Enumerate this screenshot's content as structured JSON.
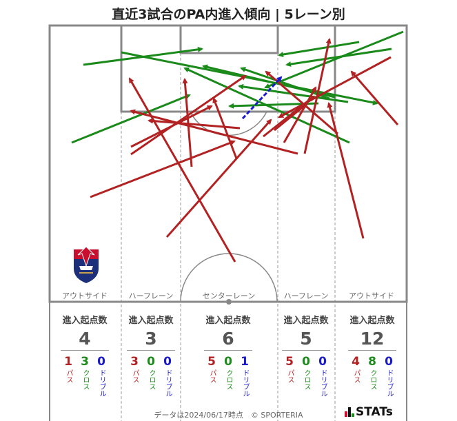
{
  "title": "直近3試合のPA内進入傾向 | 5レーン別",
  "lanes": [
    {
      "label": "アウトサイド",
      "stat_header": "進入起点数",
      "total": "4",
      "pass": "1",
      "cross": "3",
      "dribble": "0"
    },
    {
      "label": "ハーフレーン",
      "stat_header": "進入起点数",
      "total": "3",
      "pass": "3",
      "cross": "0",
      "dribble": "0"
    },
    {
      "label": "センターレーン",
      "stat_header": "進入起点数",
      "total": "6",
      "pass": "5",
      "cross": "0",
      "dribble": "1"
    },
    {
      "label": "ハーフレーン",
      "stat_header": "進入起点数",
      "total": "5",
      "pass": "5",
      "cross": "0",
      "dribble": "0"
    },
    {
      "label": "アウトサイド",
      "stat_header": "進入起点数",
      "total": "12",
      "pass": "4",
      "cross": "8",
      "dribble": "0"
    }
  ],
  "legend": {
    "pass": "パス",
    "cross": "クロス",
    "dribble": "ドリブル"
  },
  "colors": {
    "pass": "#b22222",
    "cross": "#1a8a1a",
    "dribble": "#1a1acc",
    "pitch_line": "#888888"
  },
  "footer": "データは2024/06/17時点　© SPORTERIA",
  "logo_text": "STATs",
  "crest_icon": "club-crest-icon",
  "arrows": [
    {
      "type": "cross",
      "from": [
        104,
        207
      ],
      "to": [
        275,
        138
      ]
    },
    {
      "type": "cross",
      "from": [
        121,
        94
      ],
      "to": [
        293,
        71
      ]
    },
    {
      "type": "cross",
      "from": [
        176,
        76
      ],
      "to": [
        547,
        150
      ]
    },
    {
      "type": "cross",
      "from": [
        585,
        46
      ],
      "to": [
        385,
        127
      ]
    },
    {
      "type": "cross",
      "from": [
        568,
        71
      ],
      "to": [
        416,
        94
      ]
    },
    {
      "type": "cross",
      "from": [
        521,
        61
      ],
      "to": [
        405,
        80
      ]
    },
    {
      "type": "cross",
      "from": [
        507,
        207
      ],
      "to": [
        268,
        99
      ]
    },
    {
      "type": "cross",
      "from": [
        505,
        148
      ],
      "to": [
        347,
        125
      ]
    },
    {
      "type": "cross",
      "from": [
        478,
        143
      ],
      "to": [
        350,
        99
      ]
    },
    {
      "type": "cross",
      "from": [
        486,
        141
      ],
      "to": [
        295,
        96
      ]
    },
    {
      "type": "cross",
      "from": [
        462,
        150
      ],
      "to": [
        333,
        154
      ]
    },
    {
      "type": "pass",
      "from": [
        341,
        380
      ],
      "to": [
        188,
        114
      ]
    },
    {
      "type": "pass",
      "from": [
        131,
        286
      ],
      "to": [
        340,
        205
      ]
    },
    {
      "type": "pass",
      "from": [
        242,
        344
      ],
      "to": [
        393,
        174
      ]
    },
    {
      "type": "pass",
      "from": [
        527,
        346
      ],
      "to": [
        477,
        150
      ]
    },
    {
      "type": "pass",
      "from": [
        577,
        181
      ],
      "to": [
        510,
        104
      ]
    },
    {
      "type": "pass",
      "from": [
        190,
        213
      ],
      "to": [
        307,
        154
      ]
    },
    {
      "type": "pass",
      "from": [
        190,
        224
      ],
      "to": [
        356,
        110
      ]
    },
    {
      "type": "pass",
      "from": [
        278,
        242
      ],
      "to": [
        268,
        115
      ]
    },
    {
      "type": "pass",
      "from": [
        343,
        230
      ],
      "to": [
        310,
        143
      ]
    },
    {
      "type": "pass",
      "from": [
        432,
        223
      ],
      "to": [
        190,
        161
      ]
    },
    {
      "type": "pass",
      "from": [
        412,
        207
      ],
      "to": [
        458,
        127
      ]
    },
    {
      "type": "pass",
      "from": [
        490,
        194
      ],
      "to": [
        386,
        104
      ]
    },
    {
      "type": "pass",
      "from": [
        442,
        223
      ],
      "to": [
        478,
        57
      ]
    },
    {
      "type": "pass",
      "from": [
        382,
        198
      ],
      "to": [
        455,
        140
      ]
    },
    {
      "type": "pass",
      "from": [
        567,
        83
      ],
      "to": [
        405,
        170
      ]
    },
    {
      "type": "pass",
      "from": [
        348,
        186
      ],
      "to": [
        216,
        175
      ]
    },
    {
      "type": "pass",
      "from": [
        398,
        189
      ],
      "to": [
        446,
        150
      ]
    },
    {
      "type": "dribble",
      "from": [
        352,
        172
      ],
      "to": [
        408,
        112
      ]
    }
  ]
}
